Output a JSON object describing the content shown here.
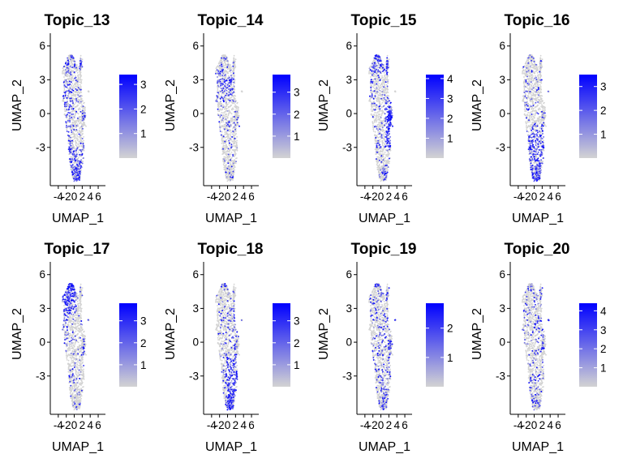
{
  "colors": {
    "low": "#d3d3d3",
    "high": "#0000ff",
    "axis": "#000000"
  },
  "chart_data": [
    {
      "type": "scatter",
      "title": "Topic_13",
      "xlabel": "UMAP_1",
      "ylabel": "UMAP_2",
      "xticks": [
        "-4",
        "-2",
        "0",
        "2",
        "4",
        "6"
      ],
      "yticks": [
        "-3",
        "0",
        "3",
        "6"
      ],
      "xlim": [
        -6,
        6.6
      ],
      "ylim": [
        -6.4,
        6.7
      ],
      "legend": {
        "ticks": [
          "1",
          "2",
          "3"
        ],
        "max": 3.4
      },
      "pattern": "left-bottom"
    },
    {
      "type": "scatter",
      "title": "Topic_14",
      "xlabel": "UMAP_1",
      "ylabel": "UMAP_2",
      "xticks": [
        "-4",
        "-2",
        "0",
        "2",
        "4",
        "6"
      ],
      "yticks": [
        "-3",
        "0",
        "3",
        "6"
      ],
      "xlim": [
        -6,
        6.6
      ],
      "ylim": [
        -6.4,
        6.7
      ],
      "legend": {
        "ticks": [
          "1",
          "2",
          "3"
        ],
        "max": 3.8
      },
      "pattern": "upper-left"
    },
    {
      "type": "scatter",
      "title": "Topic_15",
      "xlabel": "UMAP_1",
      "ylabel": "UMAP_2",
      "xticks": [
        "-4",
        "-2",
        "0",
        "2",
        "4",
        "6"
      ],
      "yticks": [
        "-3",
        "0",
        "3",
        "6"
      ],
      "xlim": [
        -6,
        6.6
      ],
      "ylim": [
        -6.4,
        6.7
      ],
      "legend": {
        "ticks": [
          "1",
          "2",
          "3",
          "4"
        ],
        "max": 4.2
      },
      "pattern": "right-middle"
    },
    {
      "type": "scatter",
      "title": "Topic_16",
      "xlabel": "UMAP_1",
      "ylabel": "UMAP_2",
      "xticks": [
        "-4",
        "-2",
        "0",
        "2",
        "4",
        "6"
      ],
      "yticks": [
        "-3",
        "0",
        "3",
        "6"
      ],
      "xlim": [
        -6,
        6.6
      ],
      "ylim": [
        -6.4,
        6.7
      ],
      "legend": {
        "ticks": [
          "1",
          "2",
          "3"
        ],
        "max": 3.5
      },
      "pattern": "bottom"
    },
    {
      "type": "scatter",
      "title": "Topic_17",
      "xlabel": "UMAP_1",
      "ylabel": "UMAP_2",
      "xticks": [
        "-4",
        "-2",
        "0",
        "2",
        "4",
        "6"
      ],
      "yticks": [
        "-3",
        "0",
        "3",
        "6"
      ],
      "xlim": [
        -6,
        6.6
      ],
      "ylim": [
        -6.4,
        6.7
      ],
      "legend": {
        "ticks": [
          "1",
          "2",
          "3"
        ],
        "max": 3.8
      },
      "pattern": "top-left"
    },
    {
      "type": "scatter",
      "title": "Topic_18",
      "xlabel": "UMAP_1",
      "ylabel": "UMAP_2",
      "xticks": [
        "-4",
        "-2",
        "0",
        "2",
        "4",
        "6"
      ],
      "yticks": [
        "-3",
        "0",
        "3",
        "6"
      ],
      "xlim": [
        -6,
        6.6
      ],
      "ylim": [
        -6.4,
        6.7
      ],
      "legend": {
        "ticks": [
          "1",
          "2",
          "3"
        ],
        "max": 3.8
      },
      "pattern": "bottom-right"
    },
    {
      "type": "scatter",
      "title": "Topic_19",
      "xlabel": "UMAP_1",
      "ylabel": "UMAP_2",
      "xticks": [
        "-4",
        "-2",
        "0",
        "2",
        "4",
        "6"
      ],
      "yticks": [
        "-3",
        "0",
        "3",
        "6"
      ],
      "xlim": [
        -6,
        6.6
      ],
      "ylim": [
        -6.4,
        6.7
      ],
      "legend": {
        "ticks": [
          "1",
          "2"
        ],
        "max": 2.85
      },
      "pattern": "sparse"
    },
    {
      "type": "scatter",
      "title": "Topic_20",
      "xlabel": "UMAP_1",
      "ylabel": "UMAP_2",
      "xticks": [
        "-4",
        "-2",
        "0",
        "2",
        "4",
        "6"
      ],
      "yticks": [
        "-3",
        "0",
        "3",
        "6"
      ],
      "xlim": [
        -6,
        6.6
      ],
      "ylim": [
        -6.4,
        6.7
      ],
      "legend": {
        "ticks": [
          "1",
          "2",
          "3",
          "4"
        ],
        "max": 4.4
      },
      "pattern": "sparse-outlier"
    }
  ]
}
